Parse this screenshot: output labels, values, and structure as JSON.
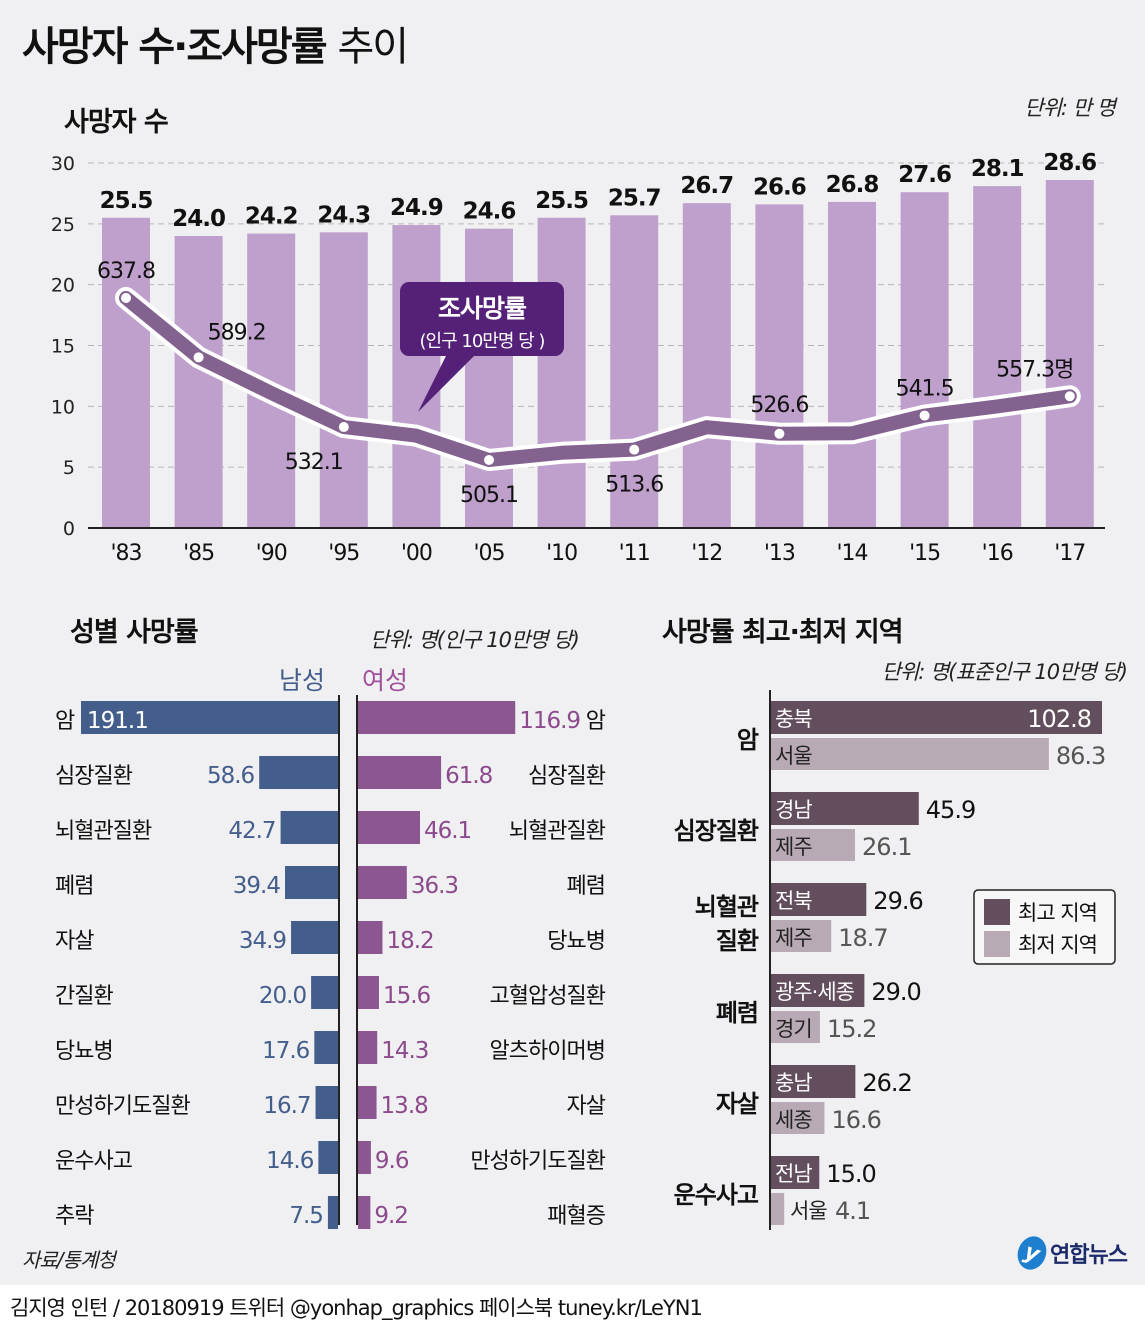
{
  "title": {
    "bold": "사망자 수·조사망률",
    "light": "추이"
  },
  "source": "자료/통계청",
  "logo": {
    "mark": "y",
    "text": "연합뉴스"
  },
  "footer": "김지영 인턴 / 20180919 트위터 @yonhap_graphics  페이스북 tuney.kr/LeYN1",
  "colors": {
    "bar": "#bfa0cc",
    "line": "#84628f",
    "callout": "#552077",
    "male": "#445e8c",
    "female": "#8c5691",
    "high": "#624e5c",
    "low": "#b8aab4"
  },
  "chart_data": [
    {
      "type": "bar",
      "title": "사망자 수",
      "unit_label": "단위: 만 명",
      "categories": [
        "'83",
        "'85",
        "'90",
        "'95",
        "'00",
        "'05",
        "'10",
        "'11",
        "'12",
        "'13",
        "'14",
        "'15",
        "'16",
        "'17"
      ],
      "values": [
        25.5,
        24.0,
        24.2,
        24.3,
        24.9,
        24.6,
        25.5,
        25.7,
        26.7,
        26.6,
        26.8,
        27.6,
        28.1,
        28.6
      ],
      "value_labels": [
        "25.5",
        "24.0",
        "24.2",
        "24.3",
        "24.9",
        "24.6",
        "25.5",
        "25.7",
        "26.7",
        "26.6",
        "26.8",
        "27.6",
        "28.1",
        "28.6"
      ],
      "ylim": [
        0,
        30
      ],
      "yticks": [
        "0",
        "5",
        "10",
        "15",
        "20",
        "25",
        "30"
      ],
      "grid": true,
      "line_series": {
        "name": "조사망률",
        "callout_title": "조사망률",
        "callout_sub": "(인구 10만명 당 )",
        "values": [
          637.8,
          589.2,
          null,
          532.1,
          null,
          505.1,
          null,
          513.6,
          null,
          526.6,
          null,
          541.5,
          null,
          557.3
        ],
        "labels": [
          "637.8",
          "589.2",
          "",
          "532.1",
          "",
          "505.1",
          "",
          "513.6",
          "",
          "526.6",
          "",
          "541.5",
          "",
          "557.3명"
        ],
        "approx_values": [
          637.8,
          589.2,
          560,
          532.1,
          525,
          505.1,
          511,
          513.6,
          532,
          526.6,
          527,
          541.5,
          549,
          557.3
        ]
      }
    },
    {
      "type": "bar",
      "title": "성별 사망률",
      "unit_label": "단위: 명(인구 10만명 당)",
      "male_label": "남성",
      "female_label": "여성",
      "male": {
        "categories": [
          "암",
          "심장질환",
          "뇌혈관질환",
          "폐렴",
          "자살",
          "간질환",
          "당뇨병",
          "만성하기도질환",
          "운수사고",
          "추락"
        ],
        "values": [
          191.1,
          58.6,
          42.7,
          39.4,
          34.9,
          20.0,
          17.6,
          16.7,
          14.6,
          7.5
        ],
        "labels": [
          "191.1",
          "58.6",
          "42.7",
          "39.4",
          "34.9",
          "20.0",
          "17.6",
          "16.7",
          "14.6",
          "7.5"
        ]
      },
      "female": {
        "categories": [
          "암",
          "심장질환",
          "뇌혈관질환",
          "폐렴",
          "당뇨병",
          "고혈압성질환",
          "알츠하이머병",
          "자살",
          "만성하기도질환",
          "패혈증"
        ],
        "values": [
          116.9,
          61.8,
          46.1,
          36.3,
          18.2,
          15.6,
          14.3,
          13.8,
          9.6,
          9.2
        ],
        "labels": [
          "116.9",
          "61.8",
          "46.1",
          "36.3",
          "18.2",
          "15.6",
          "14.3",
          "13.8",
          "9.6",
          "9.2"
        ]
      }
    },
    {
      "type": "bar",
      "title": "사망률 최고·최저 지역",
      "unit_label": "단위: 명(표준인구 10만명 당)",
      "legend": [
        {
          "name": "최고 지역"
        },
        {
          "name": "최저 지역"
        }
      ],
      "legend_position": "right",
      "groups": [
        {
          "category": [
            "암"
          ],
          "high": {
            "region": "충북",
            "value": 102.8,
            "label": "102.8"
          },
          "low": {
            "region": "서울",
            "value": 86.3,
            "label": "86.3"
          }
        },
        {
          "category": [
            "심장질환"
          ],
          "high": {
            "region": "경남",
            "value": 45.9,
            "label": "45.9"
          },
          "low": {
            "region": "제주",
            "value": 26.1,
            "label": "26.1"
          }
        },
        {
          "category": [
            "뇌혈관",
            "질환"
          ],
          "high": {
            "region": "전북",
            "value": 29.6,
            "label": "29.6"
          },
          "low": {
            "region": "제주",
            "value": 18.7,
            "label": "18.7"
          }
        },
        {
          "category": [
            "폐렴"
          ],
          "high": {
            "region": "광주·세종",
            "value": 29.0,
            "label": "29.0"
          },
          "low": {
            "region": "경기",
            "value": 15.2,
            "label": "15.2"
          }
        },
        {
          "category": [
            "자살"
          ],
          "high": {
            "region": "충남",
            "value": 26.2,
            "label": "26.2"
          },
          "low": {
            "region": "세종",
            "value": 16.6,
            "label": "16.6"
          }
        },
        {
          "category": [
            "운수사고"
          ],
          "high": {
            "region": "전남",
            "value": 15.0,
            "label": "15.0"
          },
          "low": {
            "region": "서울",
            "value": 4.1,
            "label": "4.1"
          }
        }
      ]
    }
  ]
}
